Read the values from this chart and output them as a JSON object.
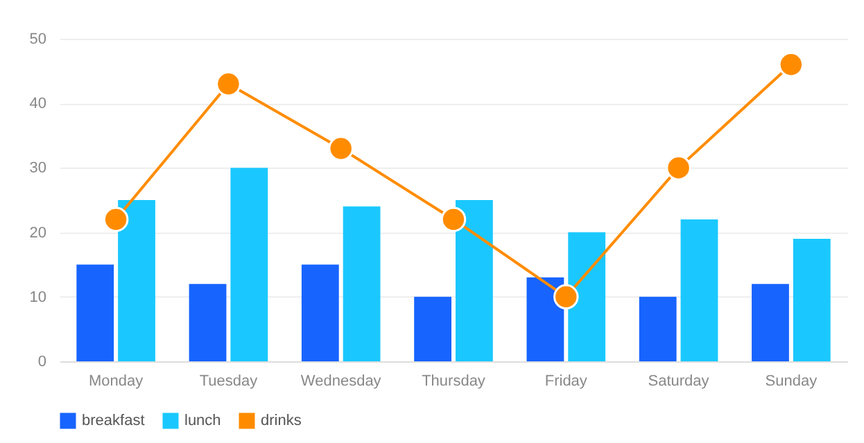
{
  "chart_data": {
    "type": "bar",
    "categories": [
      "Monday",
      "Tuesday",
      "Wednesday",
      "Thursday",
      "Friday",
      "Saturday",
      "Sunday"
    ],
    "series": [
      {
        "name": "breakfast",
        "color": "#1764ff",
        "values": [
          15,
          12,
          15,
          10,
          13,
          10,
          12
        ]
      },
      {
        "name": "lunch",
        "color": "#1ac8ff",
        "values": [
          25,
          30,
          24,
          25,
          20,
          22,
          19
        ]
      },
      {
        "name": "drinks",
        "type": "line",
        "color": "#ff8c00",
        "values": [
          22,
          43,
          33,
          22,
          10,
          30,
          46
        ]
      }
    ],
    "ylim": [
      0,
      50
    ],
    "yticks": [
      0,
      10,
      20,
      30,
      40,
      50
    ],
    "grid": "y",
    "legend": "bottom",
    "marker": "circle"
  }
}
